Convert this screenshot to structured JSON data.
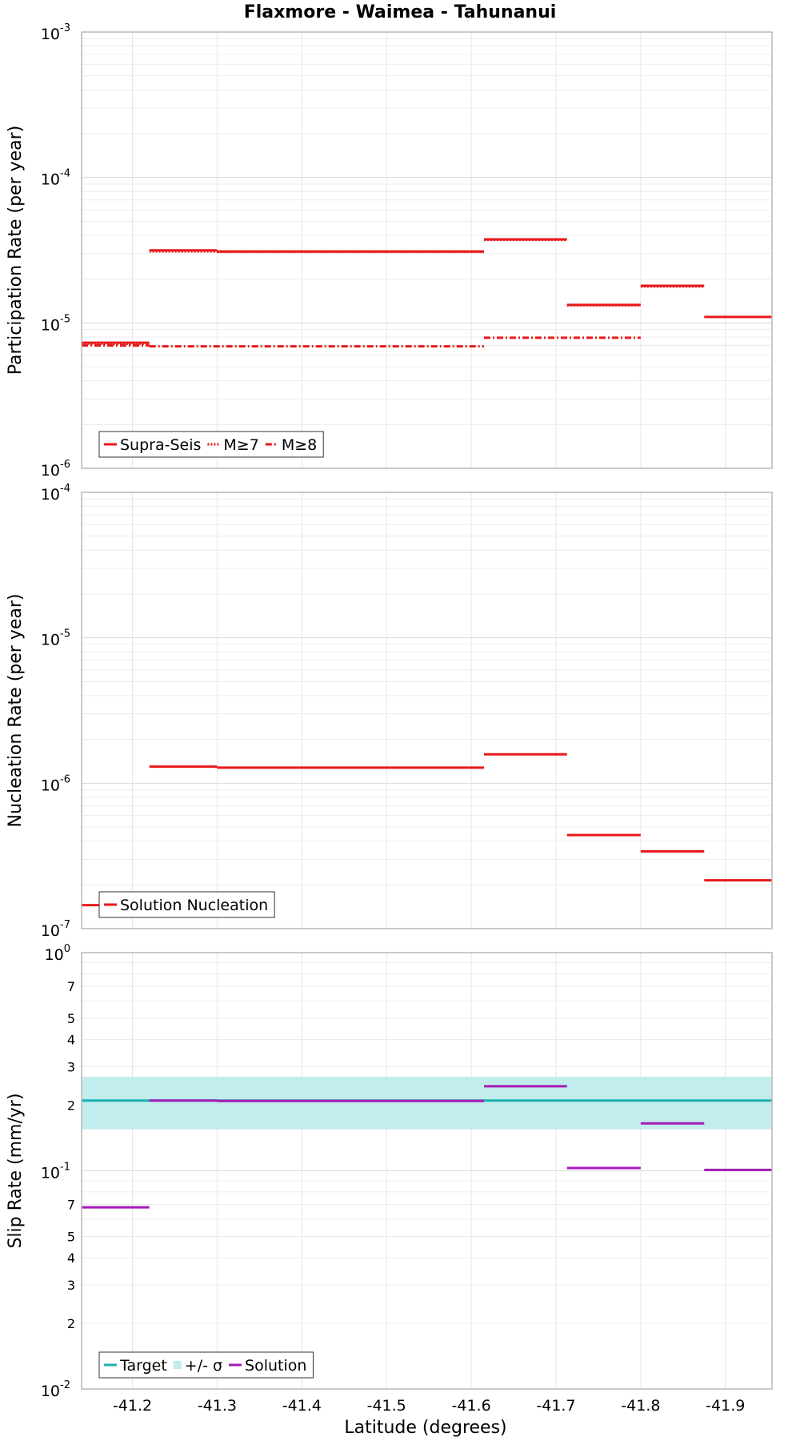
{
  "chart_data": {
    "type": "line",
    "title": "Flaxmore - Waimea - Tahunanui",
    "xlabel": "Latitude (degrees)",
    "xlim": [
      -41.14,
      -41.955
    ],
    "x_ticks": [
      "-41.2",
      "-41.3",
      "-41.4",
      "-41.5",
      "-41.6",
      "-41.7",
      "-41.8",
      "-41.9"
    ],
    "x_tick_values": [
      -41.2,
      -41.3,
      -41.4,
      -41.5,
      -41.6,
      -41.7,
      -41.8,
      -41.9
    ],
    "panels": [
      {
        "ylabel": "Participation Rate (per year)",
        "yscale": "log",
        "ylim": [
          1e-06,
          0.001
        ],
        "y_ticks": [
          {
            "base": "10",
            "exp": "-6",
            "value": 1e-06
          },
          {
            "base": "10",
            "exp": "-5",
            "value": 1e-05
          },
          {
            "base": "10",
            "exp": "-4",
            "value": 0.0001
          },
          {
            "base": "10",
            "exp": "-3",
            "value": 0.001
          }
        ],
        "y_minor_labels": [],
        "legend": "bottom-left",
        "legend_entries": [
          {
            "label": "Supra-Seis",
            "color": "#e8191b",
            "style": "solid"
          },
          {
            "label": "M≥7",
            "color": "#e8191b",
            "style": "dotted"
          },
          {
            "label": "M≥8",
            "color": "#e8191b",
            "style": "dashdot"
          }
        ],
        "series": [
          {
            "name": "Supra-Seis",
            "color": "#e8191b",
            "style": "solid",
            "segments": [
              {
                "x": [
                  -41.14,
                  -41.22
                ],
                "y": 7.3e-06
              },
              {
                "x": [
                  -41.22,
                  -41.3
                ],
                "y": 3.15e-05
              },
              {
                "x": [
                  -41.3,
                  -41.615
                ],
                "y": 3.1e-05
              },
              {
                "x": [
                  -41.615,
                  -41.713
                ],
                "y": 3.75e-05
              },
              {
                "x": [
                  -41.713,
                  -41.8
                ],
                "y": 1.33e-05
              },
              {
                "x": [
                  -41.8,
                  -41.875
                ],
                "y": 1.8e-05
              },
              {
                "x": [
                  -41.875,
                  -41.955
                ],
                "y": 1.1e-05
              }
            ]
          },
          {
            "name": "M≥7",
            "color": "#e8191b",
            "style": "dotted",
            "segments": [
              {
                "x": [
                  -41.14,
                  -41.22
                ],
                "y": 7.2e-06
              },
              {
                "x": [
                  -41.22,
                  -41.3
                ],
                "y": 3.1e-05
              },
              {
                "x": [
                  -41.3,
                  -41.615
                ],
                "y": 3.08e-05
              },
              {
                "x": [
                  -41.615,
                  -41.713
                ],
                "y": 3.72e-05
              },
              {
                "x": [
                  -41.713,
                  -41.8
                ],
                "y": 1.32e-05
              },
              {
                "x": [
                  -41.8,
                  -41.875
                ],
                "y": 1.78e-05
              }
            ]
          },
          {
            "name": "M≥8",
            "color": "#e8191b",
            "style": "dashdot",
            "segments": [
              {
                "x": [
                  -41.14,
                  -41.22
                ],
                "y": 7e-06
              },
              {
                "x": [
                  -41.22,
                  -41.615
                ],
                "y": 6.9e-06
              },
              {
                "x": [
                  -41.615,
                  -41.8
                ],
                "y": 7.9e-06
              }
            ]
          }
        ]
      },
      {
        "ylabel": "Nucleation Rate (per year)",
        "yscale": "log",
        "ylim": [
          1e-07,
          0.0001
        ],
        "y_ticks": [
          {
            "base": "10",
            "exp": "-7",
            "value": 1e-07
          },
          {
            "base": "10",
            "exp": "-6",
            "value": 1e-06
          },
          {
            "base": "10",
            "exp": "-5",
            "value": 1e-05
          },
          {
            "base": "10",
            "exp": "-4",
            "value": 0.0001
          }
        ],
        "y_minor_labels": [],
        "legend": "bottom-left",
        "legend_entries": [
          {
            "label": "Solution Nucleation",
            "color": "#e8191b",
            "style": "solid"
          }
        ],
        "series": [
          {
            "name": "Solution Nucleation",
            "color": "#e8191b",
            "style": "solid",
            "segments": [
              {
                "x": [
                  -41.14,
                  -41.22
                ],
                "y": 1.45e-07
              },
              {
                "x": [
                  -41.22,
                  -41.3
                ],
                "y": 1.3e-06
              },
              {
                "x": [
                  -41.3,
                  -41.615
                ],
                "y": 1.28e-06
              },
              {
                "x": [
                  -41.615,
                  -41.713
                ],
                "y": 1.58e-06
              },
              {
                "x": [
                  -41.713,
                  -41.8
                ],
                "y": 4.4e-07
              },
              {
                "x": [
                  -41.8,
                  -41.875
                ],
                "y": 3.4e-07
              },
              {
                "x": [
                  -41.875,
                  -41.955
                ],
                "y": 2.15e-07
              }
            ]
          }
        ]
      },
      {
        "ylabel": "Slip Rate (mm/yr)",
        "yscale": "log",
        "ylim": [
          0.01,
          1.0
        ],
        "y_ticks": [
          {
            "base": "10",
            "exp": "-2",
            "value": 0.01
          },
          {
            "base": "10",
            "exp": "-1",
            "value": 0.1
          },
          {
            "base": "10",
            "exp": "0",
            "value": 1.0
          }
        ],
        "y_minor_labels": [
          {
            "label": "2",
            "value": 0.02
          },
          {
            "label": "3",
            "value": 0.03
          },
          {
            "label": "4",
            "value": 0.04
          },
          {
            "label": "5",
            "value": 0.05
          },
          {
            "label": "7",
            "value": 0.07
          },
          {
            "label": "2",
            "value": 0.2
          },
          {
            "label": "3",
            "value": 0.3
          },
          {
            "label": "4",
            "value": 0.4
          },
          {
            "label": "5",
            "value": 0.5
          },
          {
            "label": "7",
            "value": 0.7
          }
        ],
        "legend": "bottom-left",
        "legend_entries": [
          {
            "label": "Target",
            "color": "#1ab2b2",
            "style": "solid"
          },
          {
            "label": "+/- σ",
            "color": "#c3ecec",
            "style": "band"
          },
          {
            "label": "Solution",
            "color": "#a41cb8",
            "style": "solid"
          }
        ],
        "band": {
          "name": "+/- σ",
          "color": "#c3ecec",
          "x": [
            -41.14,
            -41.955
          ],
          "y": [
            0.155,
            0.27
          ]
        },
        "series": [
          {
            "name": "Target",
            "color": "#1ab2b2",
            "style": "solid",
            "segments": [
              {
                "x": [
                  -41.14,
                  -41.955
                ],
                "y": 0.21
              }
            ]
          },
          {
            "name": "Solution",
            "color": "#a41cb8",
            "style": "solid",
            "segments": [
              {
                "x": [
                  -41.14,
                  -41.22
                ],
                "y": 0.068
              },
              {
                "x": [
                  -41.22,
                  -41.3
                ],
                "y": 0.21
              },
              {
                "x": [
                  -41.3,
                  -41.615
                ],
                "y": 0.209
              },
              {
                "x": [
                  -41.615,
                  -41.713
                ],
                "y": 0.244
              },
              {
                "x": [
                  -41.713,
                  -41.8
                ],
                "y": 0.103
              },
              {
                "x": [
                  -41.8,
                  -41.875
                ],
                "y": 0.165
              },
              {
                "x": [
                  -41.875,
                  -41.955
                ],
                "y": 0.101
              }
            ]
          }
        ]
      }
    ]
  }
}
